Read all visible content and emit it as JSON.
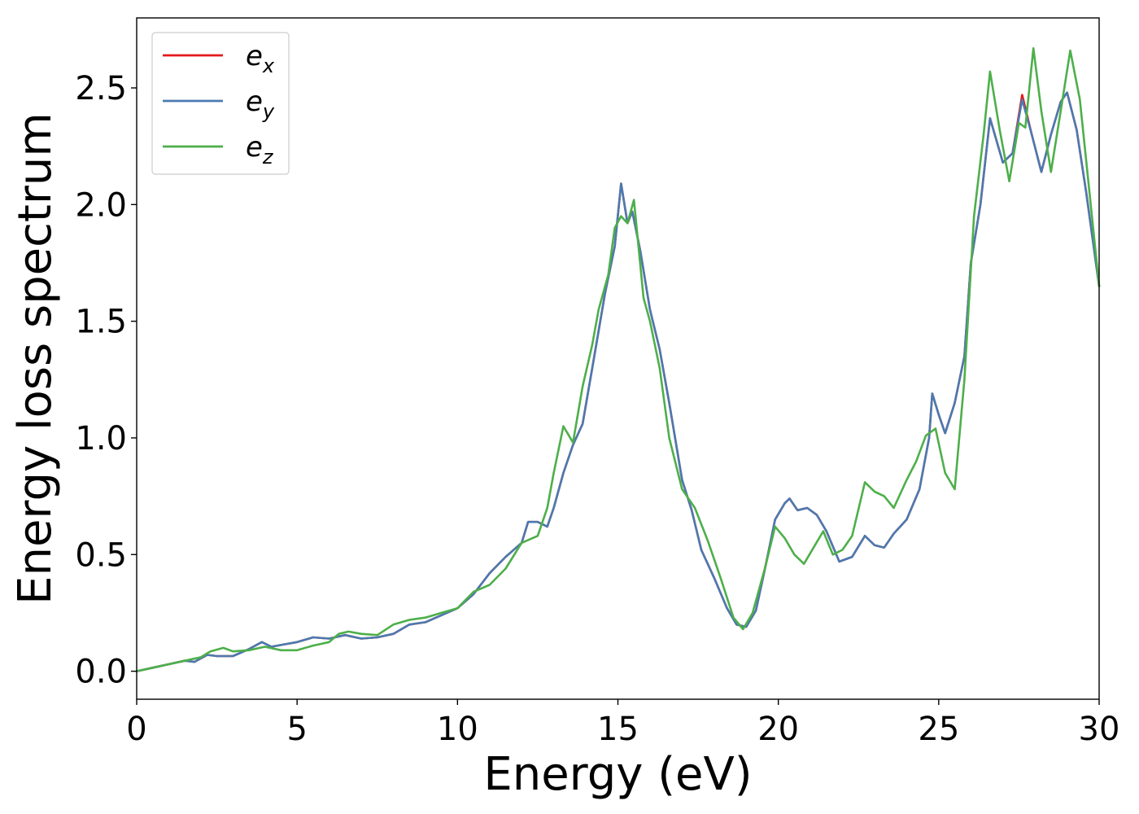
{
  "chart_data": {
    "type": "line",
    "title": "",
    "xlabel": "Energy (eV)",
    "ylabel": "Energy loss spectrum",
    "xlim": [
      0,
      30
    ],
    "ylim": [
      -0.12,
      2.8
    ],
    "xticks": [
      0,
      5,
      10,
      15,
      20,
      25,
      30
    ],
    "xtick_labels": [
      "0",
      "5",
      "10",
      "15",
      "20",
      "25",
      "30"
    ],
    "yticks": [
      0.0,
      0.5,
      1.0,
      1.5,
      2.0,
      2.5
    ],
    "ytick_labels": [
      "0.0",
      "0.5",
      "1.0",
      "1.5",
      "2.0",
      "2.5"
    ],
    "grid": false,
    "legend_position": "top-left",
    "series": [
      {
        "name": "e_x",
        "label_base": "e",
        "label_sub": "x",
        "color": "#e41a1c",
        "points": [
          [
            0,
            0
          ],
          [
            0.5,
            0.015
          ],
          [
            1,
            0.03
          ],
          [
            1.5,
            0.045
          ],
          [
            1.8,
            0.04
          ],
          [
            2.2,
            0.07
          ],
          [
            2.5,
            0.065
          ],
          [
            3,
            0.065
          ],
          [
            3.5,
            0.095
          ],
          [
            3.9,
            0.125
          ],
          [
            4.2,
            0.105
          ],
          [
            4.6,
            0.115
          ],
          [
            5,
            0.125
          ],
          [
            5.5,
            0.145
          ],
          [
            6,
            0.14
          ],
          [
            6.5,
            0.155
          ],
          [
            7,
            0.14
          ],
          [
            7.5,
            0.145
          ],
          [
            8,
            0.16
          ],
          [
            8.5,
            0.2
          ],
          [
            9,
            0.21
          ],
          [
            9.5,
            0.24
          ],
          [
            10,
            0.27
          ],
          [
            10.5,
            0.33
          ],
          [
            11,
            0.42
          ],
          [
            11.5,
            0.49
          ],
          [
            12,
            0.55
          ],
          [
            12.2,
            0.64
          ],
          [
            12.5,
            0.64
          ],
          [
            12.8,
            0.62
          ],
          [
            13,
            0.7
          ],
          [
            13.3,
            0.85
          ],
          [
            13.6,
            0.97
          ],
          [
            13.9,
            1.06
          ],
          [
            14.2,
            1.3
          ],
          [
            14.6,
            1.62
          ],
          [
            14.9,
            1.82
          ],
          [
            15.1,
            2.09
          ],
          [
            15.3,
            1.92
          ],
          [
            15.45,
            1.97
          ],
          [
            15.7,
            1.8
          ],
          [
            16,
            1.55
          ],
          [
            16.3,
            1.38
          ],
          [
            16.6,
            1.15
          ],
          [
            17,
            0.82
          ],
          [
            17.3,
            0.69
          ],
          [
            17.6,
            0.52
          ],
          [
            18,
            0.4
          ],
          [
            18.4,
            0.27
          ],
          [
            18.7,
            0.2
          ],
          [
            19,
            0.19
          ],
          [
            19.3,
            0.26
          ],
          [
            19.6,
            0.45
          ],
          [
            19.9,
            0.65
          ],
          [
            20.2,
            0.72
          ],
          [
            20.35,
            0.74
          ],
          [
            20.6,
            0.69
          ],
          [
            20.9,
            0.7
          ],
          [
            21.2,
            0.67
          ],
          [
            21.5,
            0.6
          ],
          [
            21.9,
            0.47
          ],
          [
            22.3,
            0.49
          ],
          [
            22.7,
            0.58
          ],
          [
            23,
            0.54
          ],
          [
            23.3,
            0.53
          ],
          [
            23.6,
            0.59
          ],
          [
            24,
            0.65
          ],
          [
            24.4,
            0.78
          ],
          [
            24.7,
            1.0
          ],
          [
            24.8,
            1.19
          ],
          [
            25,
            1.1
          ],
          [
            25.2,
            1.02
          ],
          [
            25.5,
            1.15
          ],
          [
            25.8,
            1.35
          ],
          [
            26,
            1.75
          ],
          [
            26.3,
            2.0
          ],
          [
            26.6,
            2.37
          ],
          [
            27,
            2.18
          ],
          [
            27.3,
            2.22
          ],
          [
            27.6,
            2.47
          ],
          [
            27.9,
            2.3
          ],
          [
            28.2,
            2.14
          ],
          [
            28.5,
            2.3
          ],
          [
            28.8,
            2.44
          ],
          [
            29,
            2.48
          ],
          [
            29.3,
            2.32
          ],
          [
            29.6,
            2.05
          ],
          [
            30,
            1.65
          ]
        ]
      },
      {
        "name": "e_y",
        "label_base": "e",
        "label_sub": "y",
        "color": "#4a7ab0",
        "points": [
          [
            0,
            0
          ],
          [
            0.5,
            0.015
          ],
          [
            1,
            0.03
          ],
          [
            1.5,
            0.045
          ],
          [
            1.8,
            0.04
          ],
          [
            2.2,
            0.07
          ],
          [
            2.5,
            0.065
          ],
          [
            3,
            0.065
          ],
          [
            3.5,
            0.095
          ],
          [
            3.9,
            0.125
          ],
          [
            4.2,
            0.105
          ],
          [
            4.6,
            0.115
          ],
          [
            5,
            0.125
          ],
          [
            5.5,
            0.145
          ],
          [
            6,
            0.14
          ],
          [
            6.5,
            0.155
          ],
          [
            7,
            0.14
          ],
          [
            7.5,
            0.145
          ],
          [
            8,
            0.16
          ],
          [
            8.5,
            0.2
          ],
          [
            9,
            0.21
          ],
          [
            9.5,
            0.24
          ],
          [
            10,
            0.27
          ],
          [
            10.5,
            0.33
          ],
          [
            11,
            0.42
          ],
          [
            11.5,
            0.49
          ],
          [
            12,
            0.55
          ],
          [
            12.2,
            0.64
          ],
          [
            12.5,
            0.64
          ],
          [
            12.8,
            0.62
          ],
          [
            13,
            0.7
          ],
          [
            13.3,
            0.85
          ],
          [
            13.6,
            0.97
          ],
          [
            13.9,
            1.06
          ],
          [
            14.2,
            1.3
          ],
          [
            14.6,
            1.62
          ],
          [
            14.9,
            1.82
          ],
          [
            15.1,
            2.09
          ],
          [
            15.3,
            1.92
          ],
          [
            15.45,
            1.97
          ],
          [
            15.7,
            1.8
          ],
          [
            16,
            1.55
          ],
          [
            16.3,
            1.38
          ],
          [
            16.6,
            1.15
          ],
          [
            17,
            0.82
          ],
          [
            17.3,
            0.69
          ],
          [
            17.6,
            0.52
          ],
          [
            18,
            0.4
          ],
          [
            18.4,
            0.27
          ],
          [
            18.7,
            0.2
          ],
          [
            19,
            0.19
          ],
          [
            19.3,
            0.26
          ],
          [
            19.6,
            0.45
          ],
          [
            19.9,
            0.65
          ],
          [
            20.2,
            0.72
          ],
          [
            20.35,
            0.74
          ],
          [
            20.6,
            0.69
          ],
          [
            20.9,
            0.7
          ],
          [
            21.2,
            0.67
          ],
          [
            21.5,
            0.6
          ],
          [
            21.9,
            0.47
          ],
          [
            22.3,
            0.49
          ],
          [
            22.7,
            0.58
          ],
          [
            23,
            0.54
          ],
          [
            23.3,
            0.53
          ],
          [
            23.6,
            0.59
          ],
          [
            24,
            0.65
          ],
          [
            24.4,
            0.78
          ],
          [
            24.7,
            1.0
          ],
          [
            24.8,
            1.19
          ],
          [
            25,
            1.1
          ],
          [
            25.2,
            1.02
          ],
          [
            25.5,
            1.15
          ],
          [
            25.8,
            1.35
          ],
          [
            26,
            1.75
          ],
          [
            26.3,
            2.0
          ],
          [
            26.6,
            2.37
          ],
          [
            27,
            2.18
          ],
          [
            27.3,
            2.22
          ],
          [
            27.6,
            2.45
          ],
          [
            27.9,
            2.3
          ],
          [
            28.2,
            2.14
          ],
          [
            28.5,
            2.3
          ],
          [
            28.8,
            2.44
          ],
          [
            29,
            2.48
          ],
          [
            29.3,
            2.32
          ],
          [
            29.6,
            2.05
          ],
          [
            30,
            1.65
          ]
        ]
      },
      {
        "name": "e_z",
        "label_base": "e",
        "label_sub": "z",
        "color": "#4daf4a",
        "points": [
          [
            0,
            0
          ],
          [
            0.5,
            0.015
          ],
          [
            1,
            0.03
          ],
          [
            1.5,
            0.045
          ],
          [
            2,
            0.06
          ],
          [
            2.3,
            0.085
          ],
          [
            2.7,
            0.1
          ],
          [
            3,
            0.085
          ],
          [
            3.5,
            0.09
          ],
          [
            4,
            0.105
          ],
          [
            4.5,
            0.09
          ],
          [
            5,
            0.09
          ],
          [
            5.5,
            0.11
          ],
          [
            6,
            0.125
          ],
          [
            6.3,
            0.16
          ],
          [
            6.6,
            0.17
          ],
          [
            7,
            0.16
          ],
          [
            7.5,
            0.155
          ],
          [
            8,
            0.2
          ],
          [
            8.5,
            0.22
          ],
          [
            9,
            0.23
          ],
          [
            9.5,
            0.25
          ],
          [
            10,
            0.27
          ],
          [
            10.5,
            0.34
          ],
          [
            11,
            0.37
          ],
          [
            11.5,
            0.44
          ],
          [
            12,
            0.55
          ],
          [
            12.5,
            0.58
          ],
          [
            12.8,
            0.7
          ],
          [
            13,
            0.85
          ],
          [
            13.3,
            1.05
          ],
          [
            13.6,
            0.98
          ],
          [
            13.9,
            1.22
          ],
          [
            14.2,
            1.4
          ],
          [
            14.4,
            1.55
          ],
          [
            14.7,
            1.7
          ],
          [
            14.9,
            1.9
          ],
          [
            15.1,
            1.95
          ],
          [
            15.3,
            1.92
          ],
          [
            15.5,
            2.02
          ],
          [
            15.8,
            1.6
          ],
          [
            16,
            1.5
          ],
          [
            16.3,
            1.3
          ],
          [
            16.6,
            1.0
          ],
          [
            17,
            0.78
          ],
          [
            17.4,
            0.7
          ],
          [
            17.8,
            0.56
          ],
          [
            18.2,
            0.4
          ],
          [
            18.6,
            0.23
          ],
          [
            18.9,
            0.18
          ],
          [
            19.2,
            0.25
          ],
          [
            19.6,
            0.45
          ],
          [
            19.9,
            0.62
          ],
          [
            20.2,
            0.57
          ],
          [
            20.5,
            0.5
          ],
          [
            20.8,
            0.46
          ],
          [
            21.1,
            0.53
          ],
          [
            21.4,
            0.6
          ],
          [
            21.7,
            0.5
          ],
          [
            22,
            0.52
          ],
          [
            22.3,
            0.58
          ],
          [
            22.7,
            0.81
          ],
          [
            23,
            0.77
          ],
          [
            23.3,
            0.75
          ],
          [
            23.6,
            0.7
          ],
          [
            24,
            0.82
          ],
          [
            24.3,
            0.9
          ],
          [
            24.6,
            1.01
          ],
          [
            24.9,
            1.04
          ],
          [
            25.2,
            0.85
          ],
          [
            25.5,
            0.78
          ],
          [
            25.8,
            1.25
          ],
          [
            26.1,
            1.95
          ],
          [
            26.4,
            2.3
          ],
          [
            26.6,
            2.57
          ],
          [
            26.9,
            2.32
          ],
          [
            27.2,
            2.1
          ],
          [
            27.5,
            2.35
          ],
          [
            27.7,
            2.33
          ],
          [
            27.95,
            2.67
          ],
          [
            28.2,
            2.4
          ],
          [
            28.5,
            2.14
          ],
          [
            28.8,
            2.4
          ],
          [
            29.1,
            2.66
          ],
          [
            29.4,
            2.45
          ],
          [
            29.7,
            2.05
          ],
          [
            30,
            1.65
          ]
        ]
      }
    ]
  }
}
